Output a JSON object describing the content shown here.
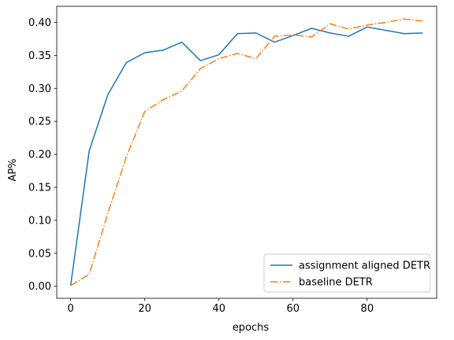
{
  "chart_data": {
    "type": "line",
    "title": "",
    "xlabel": "epochs",
    "ylabel": "AP%",
    "xlim": [
      -3.75,
      98.75
    ],
    "ylim": [
      -0.0182,
      0.4244
    ],
    "xticks": [
      0,
      20,
      40,
      60,
      80
    ],
    "xtick_labels": [
      "0",
      "20",
      "40",
      "60",
      "80"
    ],
    "yticks": [
      0.0,
      0.05,
      0.1,
      0.15,
      0.2,
      0.25,
      0.3,
      0.35,
      0.4
    ],
    "ytick_labels": [
      "0.00",
      "0.05",
      "0.10",
      "0.15",
      "0.20",
      "0.25",
      "0.30",
      "0.35",
      "0.40"
    ],
    "grid": false,
    "legend_position": "lower-right",
    "x": [
      0,
      5,
      10,
      15,
      20,
      25,
      30,
      35,
      40,
      45,
      50,
      55,
      60,
      65,
      70,
      75,
      80,
      85,
      90,
      95
    ],
    "series": [
      {
        "name": "assignment aligned DETR",
        "color": "#1f77b4",
        "style": "solid",
        "values": [
          0.001,
          0.205,
          0.29,
          0.339,
          0.354,
          0.358,
          0.37,
          0.342,
          0.351,
          0.383,
          0.384,
          0.37,
          0.38,
          0.391,
          0.384,
          0.379,
          0.393,
          0.388,
          0.383,
          0.384
        ]
      },
      {
        "name": "baseline DETR",
        "color": "#ff7f0e",
        "style": "dashdot",
        "values": [
          0.001,
          0.018,
          0.11,
          0.196,
          0.265,
          0.283,
          0.296,
          0.33,
          0.345,
          0.353,
          0.345,
          0.379,
          0.381,
          0.378,
          0.398,
          0.39,
          0.396,
          0.4,
          0.405,
          0.402
        ]
      }
    ]
  }
}
